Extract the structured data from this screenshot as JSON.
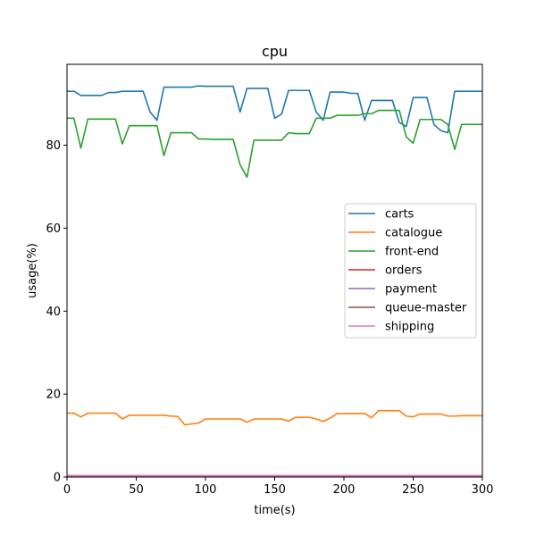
{
  "chart_data": {
    "type": "line",
    "title": "cpu",
    "xlabel": "time(s)",
    "ylabel": "usage(%)",
    "xlim": [
      0,
      300
    ],
    "ylim": [
      0,
      99.5
    ],
    "xticks": [
      0,
      50,
      100,
      150,
      200,
      250,
      300
    ],
    "yticks": [
      0,
      20,
      40,
      60,
      80
    ],
    "grid": false,
    "legend_position": "center-right",
    "x": [
      0,
      5,
      10,
      15,
      20,
      25,
      30,
      35,
      40,
      45,
      50,
      55,
      60,
      65,
      70,
      75,
      80,
      85,
      90,
      95,
      100,
      105,
      110,
      115,
      120,
      125,
      130,
      135,
      140,
      145,
      150,
      155,
      160,
      165,
      170,
      175,
      180,
      185,
      190,
      195,
      200,
      205,
      210,
      215,
      220,
      225,
      230,
      235,
      240,
      245,
      250,
      255,
      260,
      265,
      270,
      275,
      280,
      285,
      290,
      295,
      300
    ],
    "series": [
      {
        "name": "carts",
        "color": "#1f77b4",
        "values": [
          93,
          93,
          92,
          92,
          92,
          92,
          92.7,
          92.7,
          93,
          93,
          93,
          93,
          88,
          86,
          94,
          94,
          94,
          94,
          94,
          94.3,
          94.2,
          94.2,
          94.2,
          94.2,
          94.2,
          88,
          93.7,
          93.7,
          93.7,
          93.7,
          86.5,
          87.5,
          93.2,
          93.2,
          93.2,
          93.2,
          88,
          86,
          92.8,
          92.8,
          92.8,
          92.5,
          92.5,
          86,
          90.8,
          90.8,
          90.8,
          90.8,
          85.5,
          84.5,
          91.5,
          91.5,
          91.5,
          85,
          83.5,
          83,
          93,
          93,
          93,
          93,
          93
        ]
      },
      {
        "name": "catalogue",
        "color": "#ff7f0e",
        "values": [
          15.4,
          15.4,
          14.5,
          15.4,
          15.4,
          15.4,
          15.4,
          15.4,
          14,
          14.9,
          14.9,
          14.9,
          14.9,
          14.9,
          14.9,
          14.7,
          14.6,
          12.6,
          12.8,
          13,
          14,
          14,
          14,
          14,
          14,
          14,
          13.2,
          14,
          14,
          14,
          14,
          14,
          13.5,
          14.4,
          14.4,
          14.4,
          14,
          13.4,
          14.2,
          15.3,
          15.3,
          15.3,
          15.3,
          15.3,
          14.3,
          16,
          16,
          16,
          16,
          14.7,
          14.5,
          15.2,
          15.2,
          15.2,
          15.2,
          14.7,
          14.7,
          14.8,
          14.8,
          14.8,
          14.8
        ]
      },
      {
        "name": "front-end",
        "color": "#2ca02c",
        "values": [
          86.5,
          86.5,
          79.3,
          86.3,
          86.3,
          86.3,
          86.3,
          86.3,
          80.3,
          84.7,
          84.7,
          84.7,
          84.7,
          84.7,
          77.5,
          83,
          83,
          83,
          83,
          81.5,
          81.5,
          81.4,
          81.4,
          81.4,
          81.4,
          75.3,
          72.3,
          81.2,
          81.2,
          81.2,
          81.2,
          81.2,
          83,
          82.8,
          82.8,
          82.8,
          86.5,
          86.5,
          86.5,
          87.2,
          87.2,
          87.2,
          87.2,
          87.6,
          87.6,
          88.4,
          88.4,
          88.4,
          88.4,
          82,
          80.5,
          86.2,
          86.2,
          86.2,
          86.2,
          85,
          79,
          85,
          85,
          85,
          85
        ]
      },
      {
        "name": "orders",
        "color": "#d62728",
        "values": [
          0.3,
          0.3,
          0.3,
          0.3,
          0.3,
          0.3,
          0.3,
          0.3,
          0.3,
          0.3,
          0.3,
          0.3,
          0.3,
          0.3,
          0.3,
          0.3,
          0.3,
          0.3,
          0.3,
          0.3,
          0.3,
          0.3,
          0.3,
          0.3,
          0.3,
          0.3,
          0.3,
          0.3,
          0.3,
          0.3,
          0.3,
          0.3,
          0.3,
          0.3,
          0.3,
          0.3,
          0.3,
          0.3,
          0.3,
          0.3,
          0.3,
          0.3,
          0.3,
          0.3,
          0.3,
          0.3,
          0.3,
          0.3,
          0.3,
          0.3,
          0.3,
          0.3,
          0.3,
          0.3,
          0.3,
          0.3,
          0.3,
          0.3,
          0.3,
          0.3,
          0.3
        ]
      },
      {
        "name": "payment",
        "color": "#9467bd",
        "values": [
          0.3,
          0.3,
          0.3,
          0.3,
          0.3,
          0.3,
          0.3,
          0.3,
          0.3,
          0.3,
          0.3,
          0.3,
          0.3,
          0.3,
          0.3,
          0.3,
          0.3,
          0.3,
          0.3,
          0.3,
          0.3,
          0.3,
          0.3,
          0.3,
          0.3,
          0.3,
          0.3,
          0.3,
          0.3,
          0.3,
          0.3,
          0.3,
          0.3,
          0.3,
          0.3,
          0.3,
          0.3,
          0.3,
          0.3,
          0.3,
          0.3,
          0.3,
          0.3,
          0.3,
          0.3,
          0.3,
          0.3,
          0.3,
          0.3,
          0.3,
          0.3,
          0.3,
          0.3,
          0.3,
          0.3,
          0.3,
          0.3,
          0.3,
          0.3,
          0.3,
          0.3
        ]
      },
      {
        "name": "queue-master",
        "color": "#8c564b",
        "values": [
          0.3,
          0.3,
          0.3,
          0.3,
          0.3,
          0.3,
          0.3,
          0.3,
          0.3,
          0.3,
          0.3,
          0.3,
          0.3,
          0.3,
          0.3,
          0.3,
          0.3,
          0.3,
          0.3,
          0.3,
          0.3,
          0.3,
          0.3,
          0.3,
          0.3,
          0.3,
          0.3,
          0.3,
          0.3,
          0.3,
          0.3,
          0.3,
          0.3,
          0.3,
          0.3,
          0.3,
          0.3,
          0.3,
          0.3,
          0.3,
          0.3,
          0.3,
          0.3,
          0.3,
          0.3,
          0.3,
          0.3,
          0.3,
          0.3,
          0.3,
          0.3,
          0.3,
          0.3,
          0.3,
          0.3,
          0.3,
          0.3,
          0.3,
          0.3,
          0.3,
          0.3
        ]
      },
      {
        "name": "shipping",
        "color": "#e377c2",
        "values": [
          0.3,
          0.3,
          0.3,
          0.3,
          0.3,
          0.3,
          0.3,
          0.3,
          0.3,
          0.3,
          0.3,
          0.3,
          0.3,
          0.3,
          0.3,
          0.3,
          0.3,
          0.3,
          0.3,
          0.3,
          0.3,
          0.3,
          0.3,
          0.3,
          0.3,
          0.3,
          0.3,
          0.3,
          0.3,
          0.3,
          0.3,
          0.3,
          0.3,
          0.3,
          0.3,
          0.3,
          0.3,
          0.3,
          0.3,
          0.3,
          0.3,
          0.3,
          0.3,
          0.3,
          0.3,
          0.3,
          0.3,
          0.3,
          0.3,
          0.3,
          0.3,
          0.3,
          0.3,
          0.3,
          0.3,
          0.3,
          0.3,
          0.3,
          0.3,
          0.3,
          0.3
        ]
      }
    ]
  }
}
